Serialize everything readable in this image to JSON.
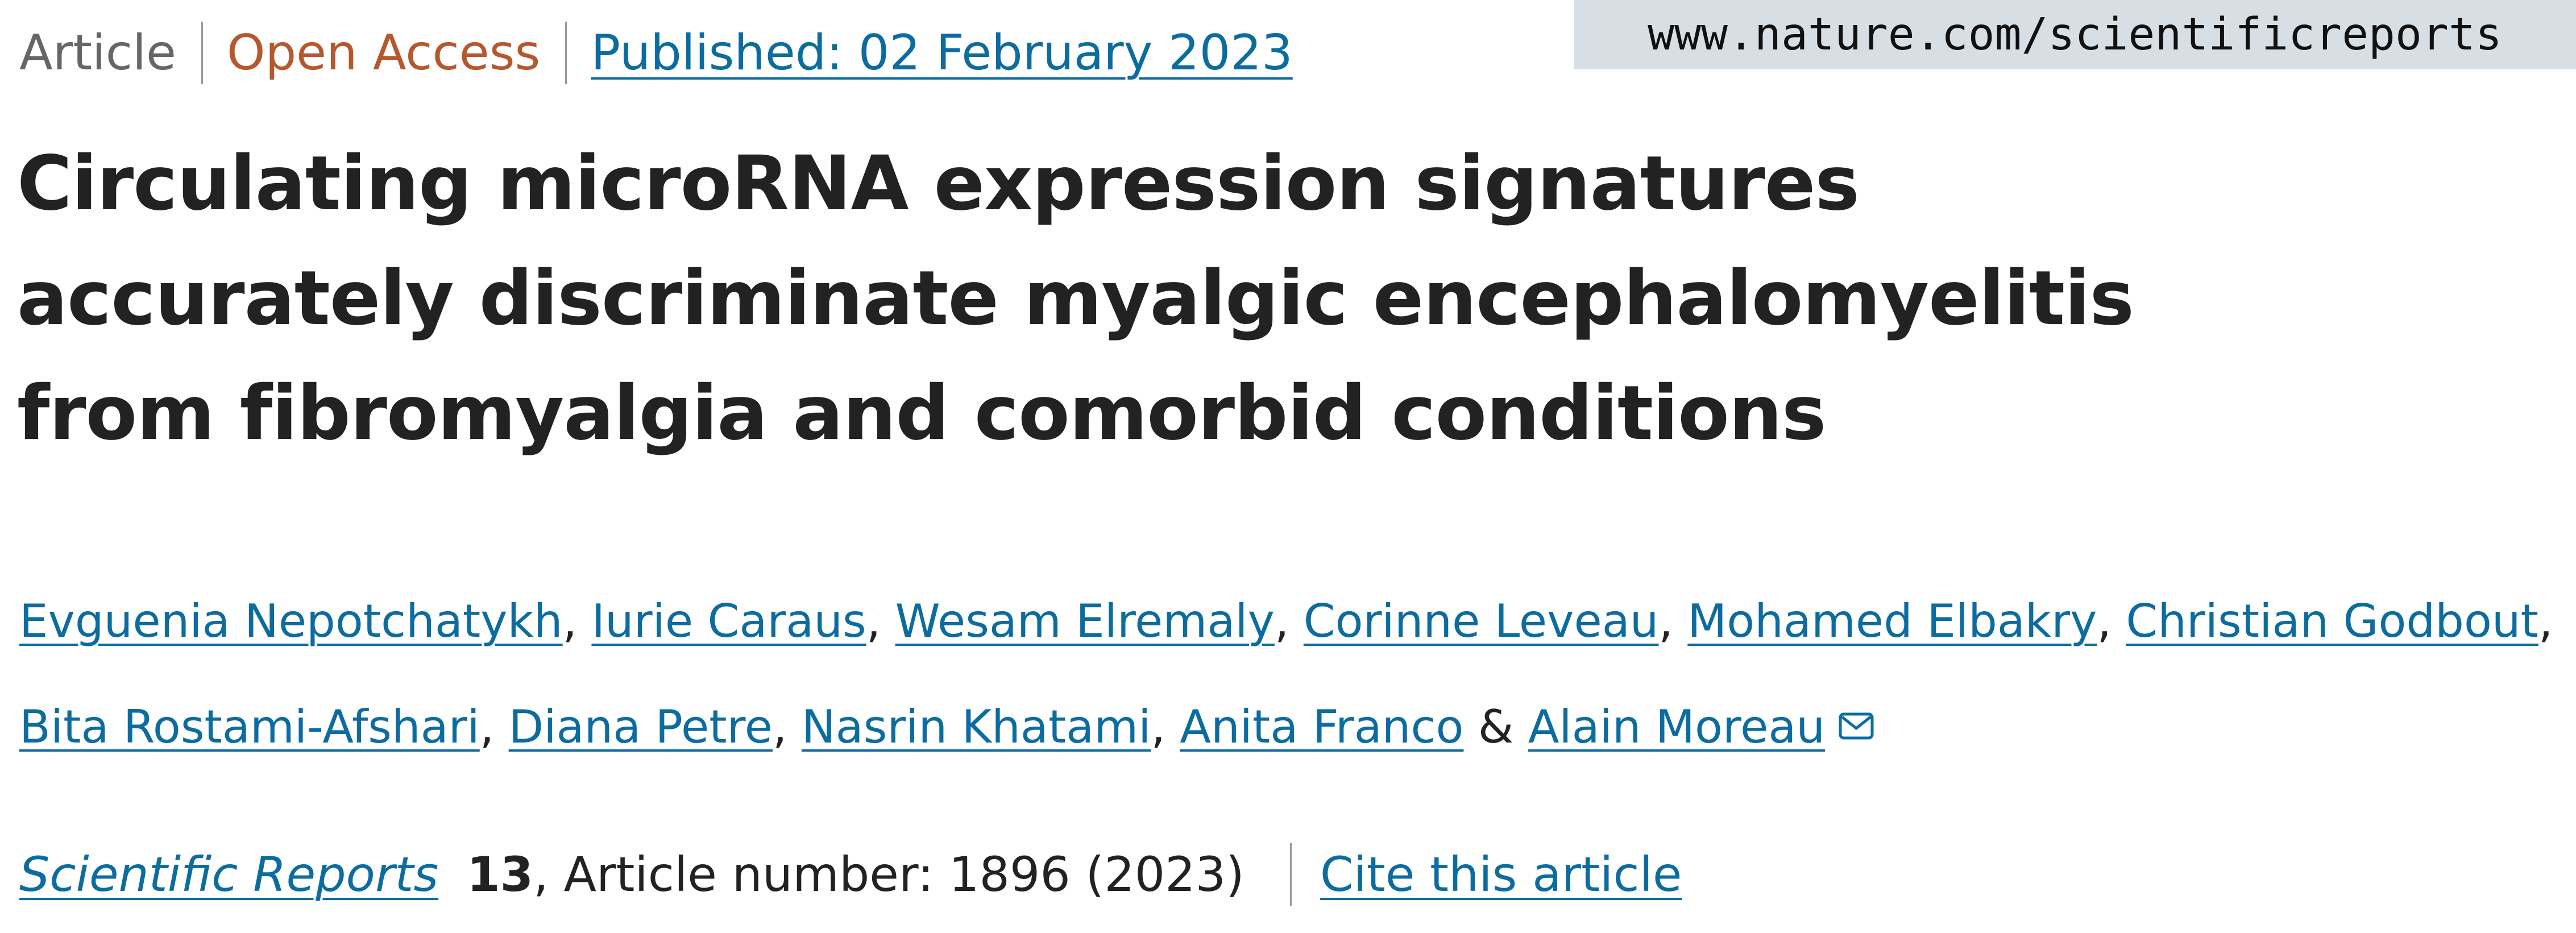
{
  "meta": {
    "article_type": "Article",
    "access": "Open Access",
    "published": "Published: 02 February 2023"
  },
  "site": {
    "url": "www.nature.com/scientificreports"
  },
  "title": {
    "line1": "Circulating microRNA expression signatures",
    "line2": "accurately discriminate myalgic encephalomyelitis",
    "line3": "from fibromyalgia and comorbid conditions"
  },
  "authors": [
    {
      "name": "Evguenia Nepotchatykh",
      "sep": ", "
    },
    {
      "name": "Iurie Caraus",
      "sep": ", "
    },
    {
      "name": "Wesam Elremaly",
      "sep": ", "
    },
    {
      "name": "Corinne Leveau",
      "sep": ", "
    },
    {
      "name": "Mohamed Elbakry",
      "sep": ", "
    },
    {
      "name": "Christian Godbout",
      "sep": ", "
    },
    {
      "name": "Bita Rostami-Afshari",
      "sep": ", "
    },
    {
      "name": "Diana Petre",
      "sep": ", "
    },
    {
      "name": "Nasrin Khatami",
      "sep": ", "
    },
    {
      "name": "Anita Franco",
      "sep": " & "
    },
    {
      "name": "Alain Moreau",
      "sep": ""
    }
  ],
  "authors_icon": "mail-icon",
  "citation": {
    "journal": "Scientific Reports",
    "volume": "13",
    "article_number": ", Article number: 1896 (2023)",
    "cite_label": "Cite this article"
  },
  "colors": {
    "link": "#0c6ca0",
    "open_access": "#b6582e",
    "muted": "#666666",
    "text": "#222222",
    "badge_bg": "#d7dfe4"
  }
}
